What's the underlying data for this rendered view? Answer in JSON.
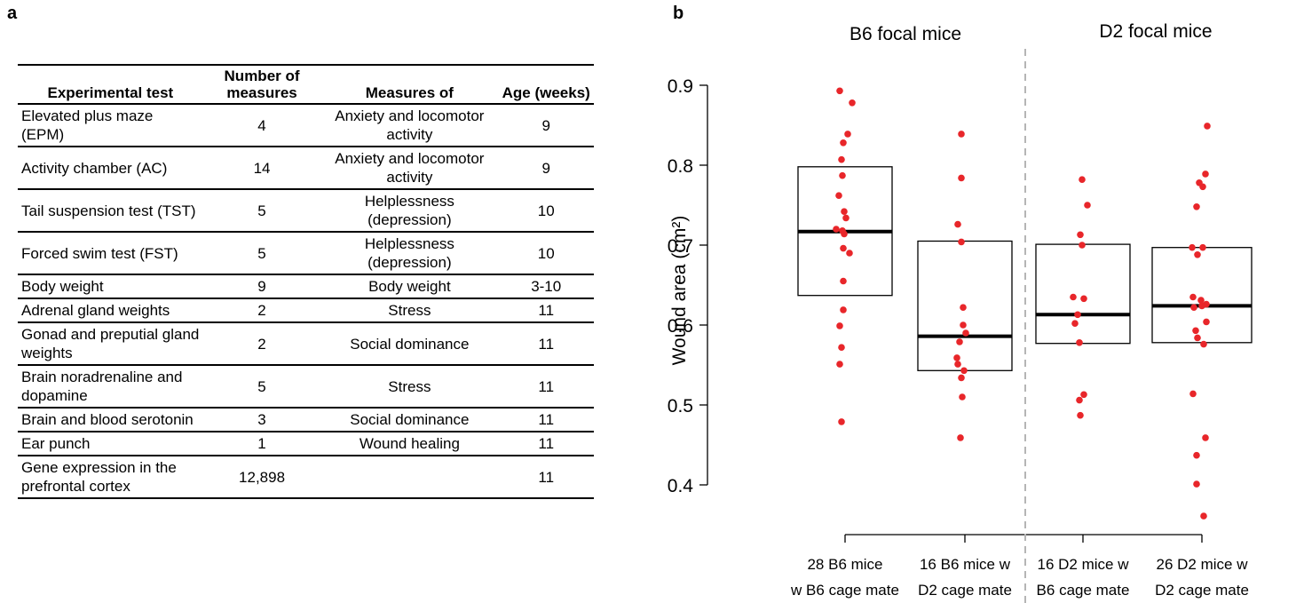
{
  "panels": {
    "a": "a",
    "b": "b"
  },
  "table": {
    "headers": [
      "Experimental test",
      "Number of measures",
      "Measures of",
      "Age (weeks)"
    ],
    "rows": [
      [
        "Elevated plus maze (EPM)",
        "4",
        "Anxiety and locomotor activity",
        "9"
      ],
      [
        "Activity chamber (AC)",
        "14",
        "Anxiety and locomotor activity",
        "9"
      ],
      [
        "Tail suspension test (TST)",
        "5",
        "Helplessness (depression)",
        "10"
      ],
      [
        "Forced swim test (FST)",
        "5",
        "Helplessness (depression)",
        "10"
      ],
      [
        "Body weight",
        "9",
        "Body weight",
        "3-10"
      ],
      [
        "Adrenal gland weights",
        "2",
        "Stress",
        "11"
      ],
      [
        "Gonad and preputial gland weights",
        "2",
        "Social dominance",
        "11"
      ],
      [
        "Brain noradrenaline and dopamine",
        "5",
        "Stress",
        "11"
      ],
      [
        "Brain and blood serotonin",
        "3",
        "Social dominance",
        "11"
      ],
      [
        "Ear punch",
        "1",
        "Wound healing",
        "11"
      ],
      [
        "Gene expression in the prefrontal cortex",
        "12,898",
        "",
        "11"
      ]
    ]
  },
  "chart_data": {
    "type": "scatter",
    "subtype": "box-and-strip",
    "group_titles": [
      "B6 focal mice",
      "D2 focal mice"
    ],
    "ylabel": "Wound area (cm²)",
    "ylim": [
      0.36,
      0.95
    ],
    "yticks": [
      "0.4",
      "0.5",
      "0.6",
      "0.7",
      "0.8",
      "0.9"
    ],
    "categories": [
      [
        "28 B6 mice",
        "w B6 cage mate"
      ],
      [
        "16 B6 mice w",
        "D2 cage mate"
      ],
      [
        "16 D2 mice w",
        "B6 cage mate"
      ],
      [
        "26 D2 mice w",
        "D2 cage mate"
      ]
    ],
    "point_color": "#e8262a",
    "grid": false,
    "divider": "dashed vertical line between groups",
    "boxes": [
      {
        "q1": 0.637,
        "median": 0.717,
        "q3": 0.798
      },
      {
        "q1": 0.543,
        "median": 0.586,
        "q3": 0.705
      },
      {
        "q1": 0.577,
        "median": 0.613,
        "q3": 0.701
      },
      {
        "q1": 0.578,
        "median": 0.624,
        "q3": 0.697
      }
    ],
    "points": [
      [
        0.893,
        0.878,
        0.839,
        0.828,
        0.807,
        0.787,
        0.762,
        0.742,
        0.734,
        0.72,
        0.718,
        0.714,
        0.696,
        0.69,
        0.655,
        0.619,
        0.599,
        0.572,
        0.551,
        0.479
      ],
      [
        0.839,
        0.784,
        0.726,
        0.704,
        0.622,
        0.6,
        0.59,
        0.579,
        0.559,
        0.551,
        0.543,
        0.534,
        0.51,
        0.459
      ],
      [
        0.782,
        0.75,
        0.713,
        0.7,
        0.635,
        0.633,
        0.613,
        0.602,
        0.578,
        0.513,
        0.506,
        0.487
      ],
      [
        0.849,
        0.789,
        0.778,
        0.773,
        0.748,
        0.697,
        0.697,
        0.688,
        0.635,
        0.631,
        0.626,
        0.624,
        0.622,
        0.604,
        0.593,
        0.584,
        0.576,
        0.514,
        0.459,
        0.437,
        0.401,
        0.361
      ]
    ]
  }
}
